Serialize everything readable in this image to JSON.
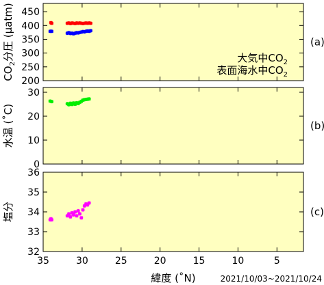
{
  "colors": {
    "panel_bg": "#ffffc0",
    "atm": "#ff0000",
    "sea": "#0000ff",
    "temp": "#00ee00",
    "sal": "#ff00ff"
  },
  "x_axis": {
    "label": "緯度 (˚N)",
    "ticks": [
      35,
      30,
      25,
      20,
      15,
      10,
      5
    ],
    "tick_labels": [
      "35",
      "30",
      "25",
      "20",
      "15",
      "10",
      "5"
    ],
    "range": [
      35,
      1.6
    ],
    "date_range": "2021/10/03~2021/10/24"
  },
  "chart_data": [
    {
      "type": "scatter",
      "panel_label": "(a)",
      "ylabel_main": "CO",
      "ylabel_sub": "2",
      "ylabel_rest": "分圧 (µatm)",
      "ylim": [
        200,
        480
      ],
      "yticks": [
        200,
        250,
        300,
        350,
        400,
        450
      ],
      "legend": [
        {
          "text_main": "大気中CO",
          "text_sub": "2",
          "color_key": "atm"
        },
        {
          "text_main": "表面海水中CO",
          "text_sub": "2",
          "color_key": "sea"
        }
      ],
      "series": [
        {
          "name": "大気中CO2",
          "color_key": "atm",
          "x": [
            34.0,
            33.9,
            31.9,
            31.7,
            31.5,
            31.3,
            31.1,
            30.9,
            30.7,
            30.5,
            30.3,
            30.1,
            29.9,
            29.7,
            29.5,
            29.3,
            29.1,
            28.9
          ],
          "y": [
            410,
            408,
            408,
            409,
            407,
            409,
            408,
            407,
            409,
            408,
            409,
            408,
            407,
            408,
            409,
            408,
            409,
            408
          ]
        },
        {
          "name": "表面海水中CO2",
          "color_key": "sea",
          "x": [
            34.1,
            33.9,
            31.9,
            31.7,
            31.5,
            31.3,
            31.1,
            30.9,
            30.7,
            30.5,
            30.3,
            30.1,
            29.9,
            29.7,
            29.5,
            29.3,
            29.1,
            28.9
          ],
          "y": [
            379,
            379,
            372,
            374,
            371,
            372,
            370,
            372,
            374,
            373,
            375,
            376,
            378,
            377,
            379,
            380,
            379,
            381
          ]
        }
      ]
    },
    {
      "type": "scatter",
      "panel_label": "(b)",
      "ylabel": "水温 (˚C)",
      "ylim": [
        0,
        32
      ],
      "yticks": [
        0,
        10,
        20,
        30
      ],
      "series": [
        {
          "color_key": "temp",
          "x": [
            34.1,
            33.9,
            31.9,
            31.7,
            31.5,
            31.3,
            31.1,
            30.9,
            30.7,
            30.5,
            30.3,
            30.1,
            29.9,
            29.7,
            29.5,
            29.3,
            29.1
          ],
          "y": [
            26.3,
            26.1,
            25.2,
            24.8,
            25.4,
            24.9,
            25.5,
            25.0,
            25.6,
            25.3,
            25.8,
            26.2,
            26.7,
            26.9,
            27.0,
            27.1,
            27.2
          ]
        }
      ]
    },
    {
      "type": "scatter",
      "panel_label": "(c)",
      "ylabel": "塩分",
      "ylim": [
        32,
        36
      ],
      "yticks": [
        32,
        33,
        34,
        35,
        36
      ],
      "series": [
        {
          "color_key": "sal",
          "x": [
            34.1,
            34.0,
            33.9,
            31.9,
            31.7,
            31.5,
            31.3,
            31.1,
            30.9,
            30.7,
            30.5,
            30.3,
            30.1,
            29.9,
            29.7,
            29.5,
            29.3,
            29.1
          ],
          "y": [
            33.6,
            33.65,
            33.6,
            33.8,
            33.9,
            33.75,
            33.95,
            33.85,
            34.0,
            33.8,
            34.05,
            33.9,
            33.7,
            34.1,
            34.3,
            34.4,
            34.35,
            34.45
          ]
        }
      ]
    }
  ]
}
